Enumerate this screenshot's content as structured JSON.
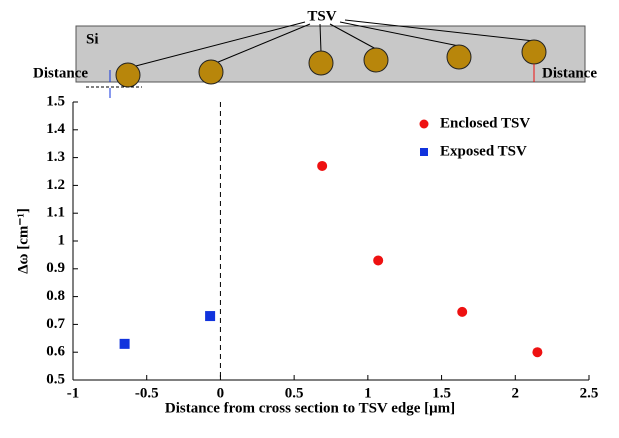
{
  "chart_data": {
    "type": "scatter",
    "annotations": [
      "Si",
      "TSV",
      "Distance",
      "Distance"
    ],
    "xlabel": "Distance from cross section to TSV edge [μm]",
    "ylabel": "Δω [cm⁻¹]",
    "series": [
      {
        "name": "Enclosed TSV",
        "color": "#ee1111",
        "marker": "circle",
        "x": [
          0.69,
          1.07,
          1.64,
          2.15
        ],
        "values": [
          1.27,
          0.93,
          0.745,
          0.6
        ]
      },
      {
        "name": "Exposed TSV",
        "color": "#1133dd",
        "marker": "square",
        "x": [
          -0.65,
          -0.07
        ],
        "values": [
          0.63,
          0.73
        ]
      }
    ],
    "xlim": [
      -1,
      2.5
    ],
    "xticks": [
      -1,
      -0.5,
      0,
      0.5,
      1,
      1.5,
      2,
      2.5
    ],
    "ylim": [
      0.5,
      1.5
    ],
    "yticks": [
      0.5,
      0.6,
      0.7,
      0.8,
      0.9,
      1,
      1.1,
      1.2,
      1.3,
      1.4,
      1.5
    ],
    "legend": "upper right"
  }
}
